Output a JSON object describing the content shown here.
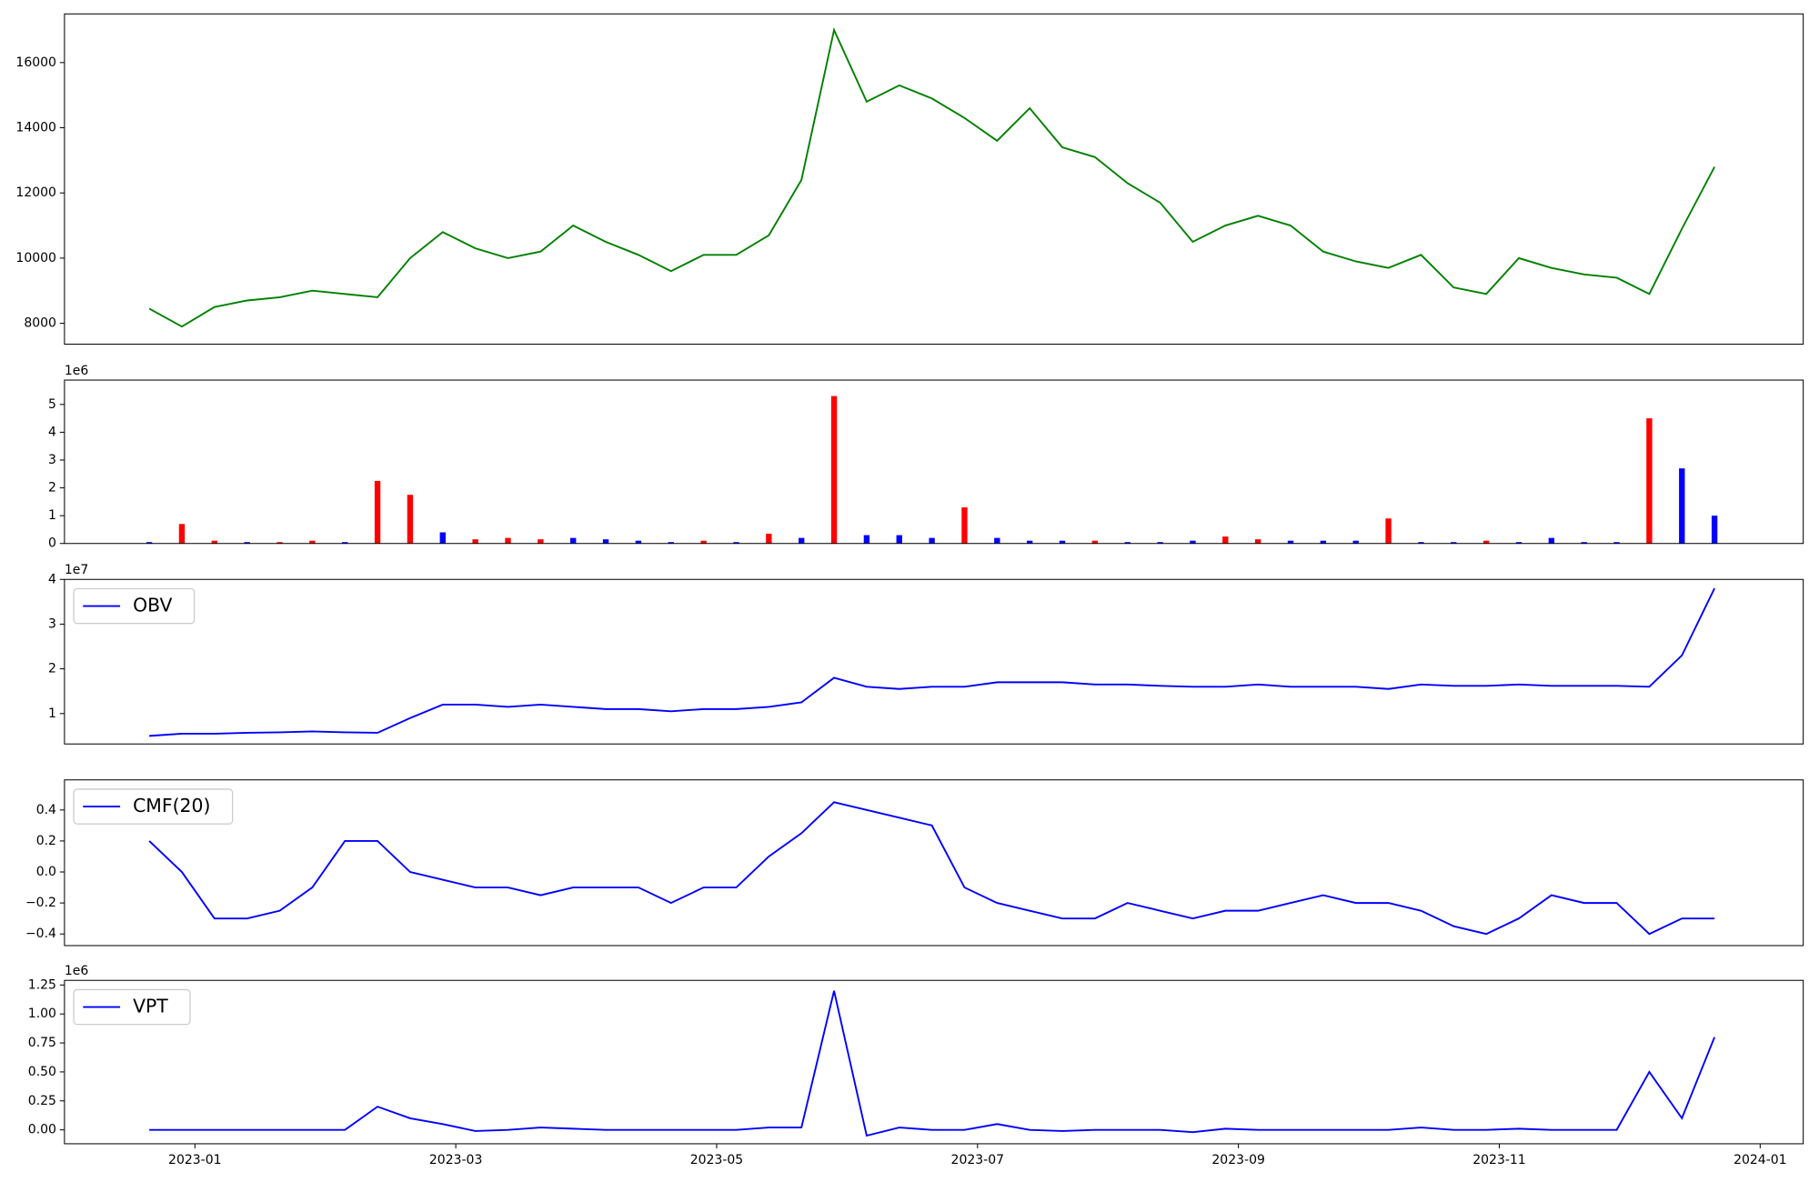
{
  "chart_data": [
    {
      "type": "line",
      "x": [
        0.65,
        0.9,
        1.15,
        1.4,
        1.65,
        1.9,
        2.15,
        2.4,
        2.65,
        2.9,
        3.15,
        3.4,
        3.65,
        3.9,
        4.15,
        4.4,
        4.65,
        4.9,
        5.15,
        5.4,
        5.65,
        5.9,
        6.15,
        6.4,
        6.65,
        6.9,
        7.15,
        7.4,
        7.65,
        7.9,
        8.15,
        8.4,
        8.65,
        8.9,
        9.15,
        9.4,
        9.65,
        9.9,
        10.15,
        10.4,
        10.65,
        10.9,
        11.15,
        11.4,
        11.65,
        11.9,
        12.15,
        12.4,
        12.65
      ],
      "series": [
        {
          "color": "#008000",
          "values": [
            8450,
            7900,
            8500,
            8700,
            8800,
            9000,
            8900,
            8800,
            10000,
            10800,
            10300,
            10000,
            10200,
            11000,
            10500,
            10100,
            9600,
            10100,
            10100,
            10700,
            12400,
            17000,
            14800,
            15300,
            14900,
            14300,
            13600,
            14600,
            13400,
            13100,
            12300,
            11700,
            10500,
            11000,
            11300,
            11000,
            10200,
            9900,
            9700,
            10100,
            9100,
            8900,
            10000,
            9700,
            9500,
            9400,
            8900,
            10900,
            12800
          ]
        }
      ],
      "xlim": [
        0,
        13.33
      ],
      "ylim": [
        7360,
        17493
      ],
      "yticks": [
        8000,
        10000,
        12000,
        14000,
        16000
      ]
    },
    {
      "type": "bar",
      "x": [
        0.65,
        0.9,
        1.15,
        1.4,
        1.65,
        1.9,
        2.15,
        2.4,
        2.65,
        2.9,
        3.15,
        3.4,
        3.65,
        3.9,
        4.15,
        4.4,
        4.65,
        4.9,
        5.15,
        5.4,
        5.65,
        5.9,
        6.15,
        6.4,
        6.65,
        6.9,
        7.15,
        7.4,
        7.65,
        7.9,
        8.15,
        8.4,
        8.65,
        8.9,
        9.15,
        9.4,
        9.65,
        9.9,
        10.15,
        10.4,
        10.65,
        10.9,
        11.15,
        11.4,
        11.65,
        11.9,
        12.15,
        12.4,
        12.65
      ],
      "values": [
        0.05,
        0.7,
        0.1,
        0.05,
        0.05,
        0.1,
        0.05,
        2.25,
        1.75,
        0.4,
        0.15,
        0.2,
        0.15,
        0.2,
        0.15,
        0.1,
        0.05,
        0.1,
        0.05,
        0.35,
        0.2,
        5.3,
        0.3,
        0.3,
        0.2,
        1.3,
        0.2,
        0.1,
        0.1,
        0.1,
        0.05,
        0.05,
        0.1,
        0.25,
        0.15,
        0.1,
        0.1,
        0.1,
        0.9,
        0.05,
        0.05,
        0.1,
        0.05,
        0.2,
        0.05,
        0.05,
        4.5,
        2.7,
        1.0
      ],
      "bar_colors": [
        "#0000ff",
        "#ff0000",
        "#ff0000",
        "#0000ff",
        "#ff0000",
        "#ff0000",
        "#0000ff",
        "#ff0000",
        "#ff0000",
        "#0000ff",
        "#ff0000",
        "#ff0000",
        "#ff0000",
        "#0000ff",
        "#0000ff",
        "#0000ff",
        "#0000ff",
        "#ff0000",
        "#0000ff",
        "#ff0000",
        "#0000ff",
        "#ff0000",
        "#0000ff",
        "#0000ff",
        "#0000ff",
        "#ff0000",
        "#0000ff",
        "#0000ff",
        "#0000ff",
        "#ff0000",
        "#0000ff",
        "#0000ff",
        "#0000ff",
        "#ff0000",
        "#ff0000",
        "#0000ff",
        "#0000ff",
        "#0000ff",
        "#ff0000",
        "#0000ff",
        "#0000ff",
        "#ff0000",
        "#0000ff",
        "#0000ff",
        "#0000ff",
        "#0000ff",
        "#ff0000",
        "#0000ff",
        "#0000ff"
      ],
      "xlim": [
        0,
        13.33
      ],
      "ylim": [
        0,
        5.875
      ],
      "yticks": [
        0,
        1,
        2,
        3,
        4,
        5
      ],
      "y_offset_label": "1e6"
    },
    {
      "type": "line",
      "x": [
        0.65,
        0.9,
        1.15,
        1.4,
        1.65,
        1.9,
        2.15,
        2.4,
        2.65,
        2.9,
        3.15,
        3.4,
        3.65,
        3.9,
        4.15,
        4.4,
        4.65,
        4.9,
        5.15,
        5.4,
        5.65,
        5.9,
        6.15,
        6.4,
        6.65,
        6.9,
        7.15,
        7.4,
        7.65,
        7.9,
        8.15,
        8.4,
        8.65,
        8.9,
        9.15,
        9.4,
        9.65,
        9.9,
        10.15,
        10.4,
        10.65,
        10.9,
        11.15,
        11.4,
        11.65,
        11.9,
        12.15,
        12.4,
        12.65
      ],
      "series": [
        {
          "name": "OBV",
          "color": "#0000ff",
          "values": [
            0.5,
            0.55,
            0.55,
            0.57,
            0.58,
            0.6,
            0.58,
            0.57,
            0.9,
            1.2,
            1.2,
            1.15,
            1.2,
            1.15,
            1.1,
            1.1,
            1.05,
            1.1,
            1.1,
            1.15,
            1.25,
            1.8,
            1.6,
            1.55,
            1.6,
            1.6,
            1.7,
            1.7,
            1.7,
            1.65,
            1.65,
            1.62,
            1.6,
            1.6,
            1.65,
            1.6,
            1.6,
            1.6,
            1.55,
            1.65,
            1.62,
            1.62,
            1.65,
            1.62,
            1.62,
            1.62,
            1.6,
            2.3,
            3.8
          ]
        }
      ],
      "xlim": [
        0,
        13.33
      ],
      "ylim": [
        0.32,
        4.0
      ],
      "yticks": [
        1,
        2,
        3,
        4
      ],
      "y_offset_label": "1e7"
    },
    {
      "type": "line",
      "x": [
        0.65,
        0.9,
        1.15,
        1.4,
        1.65,
        1.9,
        2.15,
        2.4,
        2.65,
        2.9,
        3.15,
        3.4,
        3.65,
        3.9,
        4.15,
        4.4,
        4.65,
        4.9,
        5.15,
        5.4,
        5.65,
        5.9,
        6.15,
        6.4,
        6.65,
        6.9,
        7.15,
        7.4,
        7.65,
        7.9,
        8.15,
        8.4,
        8.65,
        8.9,
        9.15,
        9.4,
        9.65,
        9.9,
        10.15,
        10.4,
        10.65,
        10.9,
        11.15,
        11.4,
        11.65,
        11.9,
        12.15,
        12.4,
        12.65
      ],
      "series": [
        {
          "name": "CMF(20)",
          "color": "#0000ff",
          "values": [
            0.2,
            0.0,
            -0.3,
            -0.3,
            -0.25,
            -0.1,
            0.2,
            0.2,
            0.0,
            -0.05,
            -0.1,
            -0.1,
            -0.15,
            -0.1,
            -0.1,
            -0.1,
            -0.2,
            -0.1,
            -0.1,
            0.1,
            0.25,
            0.45,
            0.4,
            0.35,
            0.3,
            -0.1,
            -0.2,
            -0.25,
            -0.3,
            -0.3,
            -0.2,
            -0.25,
            -0.3,
            -0.25,
            -0.25,
            -0.2,
            -0.15,
            -0.2,
            -0.2,
            -0.25,
            -0.35,
            -0.4,
            -0.3,
            -0.15,
            -0.2,
            -0.2,
            -0.4,
            -0.3,
            -0.3
          ]
        }
      ],
      "xlim": [
        0,
        13.33
      ],
      "ylim": [
        -0.475,
        0.594
      ],
      "yticks": [
        {
          "value": -0.4,
          "label": "−0.4"
        },
        {
          "value": -0.2,
          "label": "−0.2"
        },
        {
          "value": 0,
          "label": "0.0"
        },
        0.2,
        0.4
      ]
    },
    {
      "type": "line",
      "x": [
        0.65,
        0.9,
        1.15,
        1.4,
        1.65,
        1.9,
        2.15,
        2.4,
        2.65,
        2.9,
        3.15,
        3.4,
        3.65,
        3.9,
        4.15,
        4.4,
        4.65,
        4.9,
        5.15,
        5.4,
        5.65,
        5.9,
        6.15,
        6.4,
        6.65,
        6.9,
        7.15,
        7.4,
        7.65,
        7.9,
        8.15,
        8.4,
        8.65,
        8.9,
        9.15,
        9.4,
        9.65,
        9.9,
        10.15,
        10.4,
        10.65,
        10.9,
        11.15,
        11.4,
        11.65,
        11.9,
        12.15,
        12.4,
        12.65
      ],
      "series": [
        {
          "name": "VPT",
          "color": "#0000ff",
          "values": [
            0,
            0,
            0,
            0,
            0,
            0,
            0,
            0.2,
            0.1,
            0.05,
            -0.01,
            0,
            0.02,
            0.01,
            0,
            0,
            0,
            0,
            0,
            0.02,
            0.02,
            1.2,
            -0.05,
            0.02,
            0,
            0,
            0.05,
            0,
            -0.01,
            0,
            0,
            0,
            -0.02,
            0.01,
            0,
            0,
            0,
            0,
            0,
            0.02,
            0,
            0,
            0.01,
            0,
            0,
            0,
            0.5,
            0.1,
            0.8
          ]
        }
      ],
      "xlim": [
        0,
        13.33
      ],
      "ylim": [
        -0.12,
        1.29
      ],
      "yticks": [
        {
          "value": 0,
          "label": "0.00"
        },
        {
          "value": 0.25,
          "label": "0.25"
        },
        {
          "value": 0.5,
          "label": "0.50"
        },
        {
          "value": 0.75,
          "label": "0.75"
        },
        {
          "value": 1,
          "label": "1.00"
        },
        {
          "value": 1.25,
          "label": "1.25"
        }
      ],
      "xticks": [
        {
          "value": 1,
          "label": "2023-01"
        },
        {
          "value": 3,
          "label": "2023-03"
        },
        {
          "value": 5,
          "label": "2023-05"
        },
        {
          "value": 7,
          "label": "2023-07"
        },
        {
          "value": 9,
          "label": "2023-09"
        },
        {
          "value": 11,
          "label": "2023-11"
        },
        {
          "value": 13,
          "label": "2024-01"
        }
      ],
      "y_offset_label": "1e6"
    }
  ]
}
